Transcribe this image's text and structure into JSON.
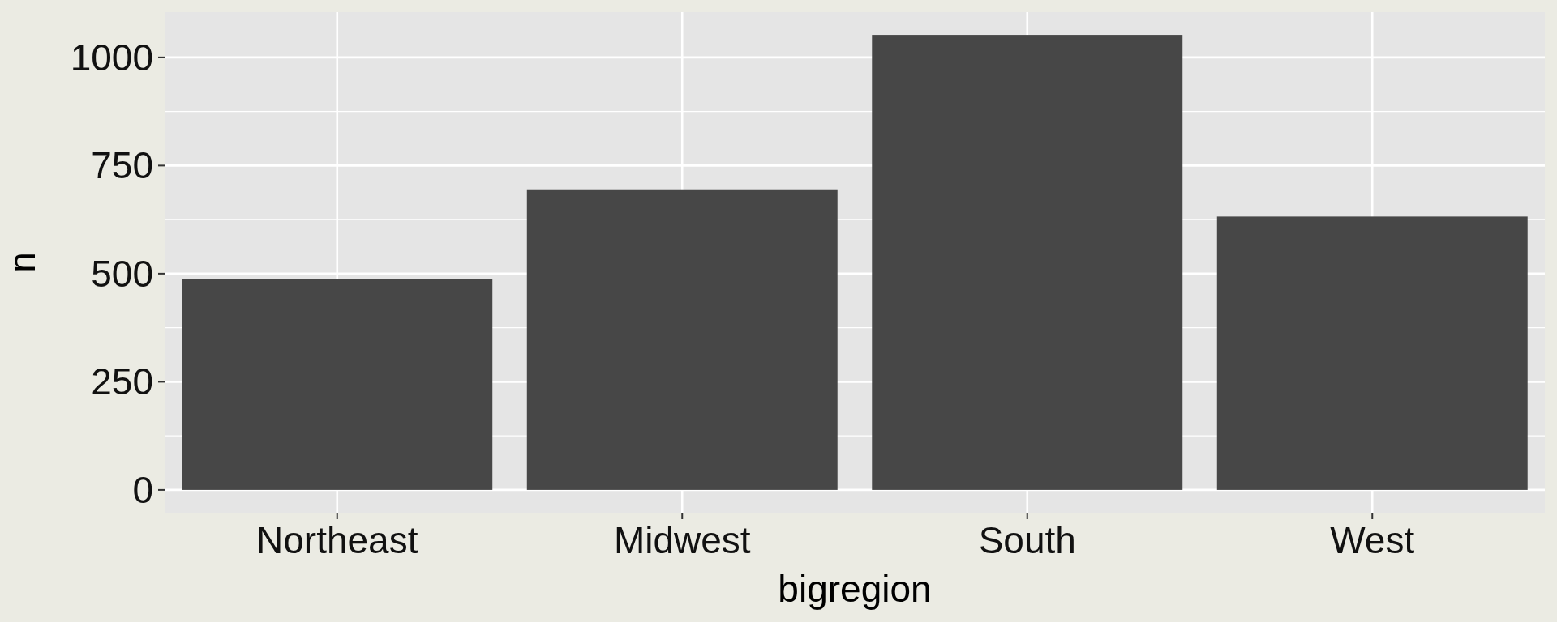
{
  "chart_data": {
    "type": "bar",
    "xlabel": "bigregion",
    "ylabel": "n",
    "categories": [
      "Northeast",
      "Midwest",
      "South",
      "West"
    ],
    "values": [
      488,
      695,
      1052,
      632
    ],
    "color": "#474747",
    "ylim": [
      -52.6,
      1104.6
    ],
    "yticks": [
      0,
      250,
      500,
      750,
      1000
    ],
    "grid": true
  }
}
